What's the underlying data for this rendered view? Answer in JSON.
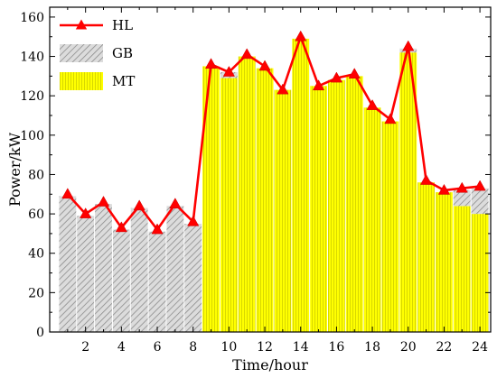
{
  "chart_data": {
    "type": "bar",
    "stacked": true,
    "xlabel": "Time/hour",
    "ylabel": "Power/kW",
    "xlim": [
      0,
      24.6
    ],
    "ylim": [
      0,
      165
    ],
    "x": [
      1,
      2,
      3,
      4,
      5,
      6,
      7,
      8,
      9,
      10,
      11,
      12,
      13,
      14,
      15,
      16,
      17,
      18,
      19,
      20,
      21,
      22,
      23,
      24
    ],
    "x_ticks": [
      2,
      4,
      6,
      8,
      10,
      12,
      14,
      16,
      18,
      20,
      22,
      24
    ],
    "y_ticks": [
      0,
      20,
      40,
      60,
      80,
      100,
      120,
      140,
      160
    ],
    "series": [
      {
        "name": "MT",
        "kind": "bar",
        "color": "#ffff00",
        "stripe_color": "#cccc00",
        "values": [
          0,
          0,
          0,
          0,
          0,
          0,
          0,
          0,
          135,
          129,
          140,
          134,
          123,
          149,
          125,
          128,
          130,
          114,
          107,
          142,
          76,
          71,
          64,
          60
        ]
      },
      {
        "name": "GB",
        "kind": "bar",
        "color": "#d9d9d9",
        "hatch_color": "#8c8c8c",
        "values": [
          69,
          59,
          65,
          52,
          63,
          51,
          64,
          55,
          0,
          3,
          0,
          0,
          0,
          0,
          0,
          0,
          0,
          0,
          0,
          2,
          0,
          0,
          8,
          13
        ]
      },
      {
        "name": "HL",
        "kind": "line",
        "color": "#ff0000",
        "marker": "triangle",
        "values": [
          70,
          60,
          66,
          53,
          64,
          52,
          65,
          56,
          136,
          132,
          141,
          135,
          123,
          150,
          125,
          129,
          131,
          115,
          108,
          145,
          77,
          72,
          73,
          74
        ]
      }
    ],
    "legend": {
      "placement": "top-left",
      "order": [
        "HL",
        "GB",
        "MT"
      ]
    }
  }
}
